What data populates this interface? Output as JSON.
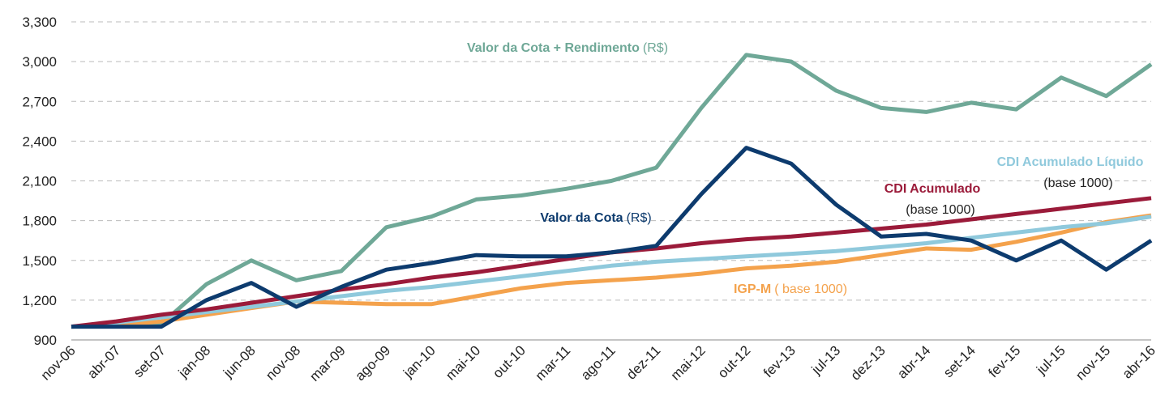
{
  "chart_data": {
    "type": "line",
    "categories": [
      "nov-06",
      "abr-07",
      "set-07",
      "jan-08",
      "jun-08",
      "nov-08",
      "mar-09",
      "ago-09",
      "jan-10",
      "mai-10",
      "out-10",
      "mar-11",
      "ago-11",
      "dez-11",
      "mai-12",
      "out-12",
      "fev-13",
      "jul-13",
      "dez-13",
      "abr-14",
      "set-14",
      "fev-15",
      "jul-15",
      "nov-15",
      "abr-16"
    ],
    "series": [
      {
        "name": "Valor da Cota + Rendimento",
        "suffix": "(R$)",
        "color": "#6fa897",
        "values": [
          1000,
          1010,
          1020,
          1320,
          1500,
          1350,
          1420,
          1750,
          1830,
          1960,
          1990,
          2040,
          2100,
          2200,
          2650,
          3050,
          3000,
          2780,
          2650,
          2620,
          2690,
          2640,
          2880,
          2740,
          2980
        ]
      },
      {
        "name": "IGP-M",
        "suffix": "( base 1000)",
        "color": "#f4a24c",
        "values": [
          1000,
          1010,
          1040,
          1090,
          1140,
          1190,
          1180,
          1170,
          1170,
          1230,
          1290,
          1330,
          1350,
          1370,
          1400,
          1440,
          1460,
          1490,
          1540,
          1590,
          1580,
          1640,
          1710,
          1790,
          1840
        ]
      },
      {
        "name": "CDI Acumulado Líquido",
        "suffix": "(base 1000)",
        "color": "#8fc9dc",
        "values": [
          1000,
          1030,
          1070,
          1110,
          1150,
          1190,
          1230,
          1270,
          1300,
          1340,
          1380,
          1420,
          1460,
          1490,
          1510,
          1530,
          1550,
          1570,
          1600,
          1630,
          1670,
          1710,
          1750,
          1780,
          1830
        ]
      },
      {
        "name": "CDI Acumulado",
        "suffix": "(base 1000)",
        "color": "#9b1b3a",
        "values": [
          1000,
          1040,
          1090,
          1130,
          1180,
          1230,
          1280,
          1320,
          1370,
          1410,
          1460,
          1510,
          1560,
          1590,
          1630,
          1660,
          1680,
          1710,
          1740,
          1770,
          1810,
          1850,
          1890,
          1930,
          1970
        ]
      },
      {
        "name": "Valor da Cota",
        "suffix": "(R$)",
        "color": "#0d3b6e",
        "values": [
          1000,
          1000,
          1000,
          1200,
          1330,
          1150,
          1300,
          1430,
          1480,
          1540,
          1530,
          1530,
          1560,
          1610,
          2000,
          2350,
          2230,
          1920,
          1680,
          1700,
          1650,
          1500,
          1650,
          1430,
          1650
        ]
      }
    ],
    "ylim": [
      900,
      3300
    ],
    "yticks": [
      {
        "value": 900,
        "label": "900"
      },
      {
        "value": 1200,
        "label": "1,200"
      },
      {
        "value": 1500,
        "label": "1,500"
      },
      {
        "value": 1800,
        "label": "1,800"
      },
      {
        "value": 2100,
        "label": "2,100"
      },
      {
        "value": 2400,
        "label": "2,400"
      },
      {
        "value": 2700,
        "label": "2,700"
      },
      {
        "value": 3000,
        "label": "3,000"
      },
      {
        "value": 3300,
        "label": "3,300"
      }
    ],
    "grid": true
  }
}
